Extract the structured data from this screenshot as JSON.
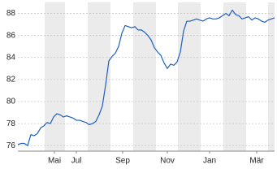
{
  "chart_data": {
    "type": "line",
    "series": [
      {
        "color": "#1f5fbf",
        "values": [
          76.1,
          76.2,
          76.2,
          76.0,
          77.0,
          76.9,
          77.1,
          77.6,
          77.8,
          78.1,
          78.0,
          78.6,
          78.9,
          78.8,
          78.6,
          78.7,
          78.6,
          78.5,
          78.3,
          78.3,
          78.2,
          78.1,
          77.9,
          78.0,
          78.2,
          78.8,
          79.6,
          81.5,
          83.7,
          84.1,
          84.4,
          85.0,
          86.2,
          86.9,
          86.8,
          86.7,
          86.8,
          86.5,
          86.5,
          86.3,
          86.0,
          85.6,
          84.9,
          84.5,
          84.2,
          83.5,
          83.0,
          83.4,
          83.3,
          83.6,
          84.5,
          86.4,
          87.3,
          87.3,
          87.4,
          87.5,
          87.4,
          87.3,
          87.5,
          87.6,
          87.5,
          87.5,
          87.6,
          87.8,
          88.0,
          87.8,
          88.3,
          87.9,
          87.8,
          87.5,
          87.6,
          87.7,
          87.4,
          87.6,
          87.5,
          87.3,
          87.2,
          87.4,
          87.5,
          87.6
        ]
      }
    ],
    "xlim": [
      0,
      79
    ],
    "xticks": [
      {
        "value": 11.25,
        "label": "Mai"
      },
      {
        "value": 18,
        "label": "Jul"
      },
      {
        "value": 32.25,
        "label": "Sep"
      },
      {
        "value": 46,
        "label": "Nov"
      },
      {
        "value": 59,
        "label": "Jan"
      },
      {
        "value": 73.5,
        "label": "Mär"
      }
    ],
    "ylim": [
      75.5,
      89
    ],
    "yticks": [
      76,
      78,
      80,
      82,
      84,
      86,
      88
    ],
    "grid": true
  }
}
